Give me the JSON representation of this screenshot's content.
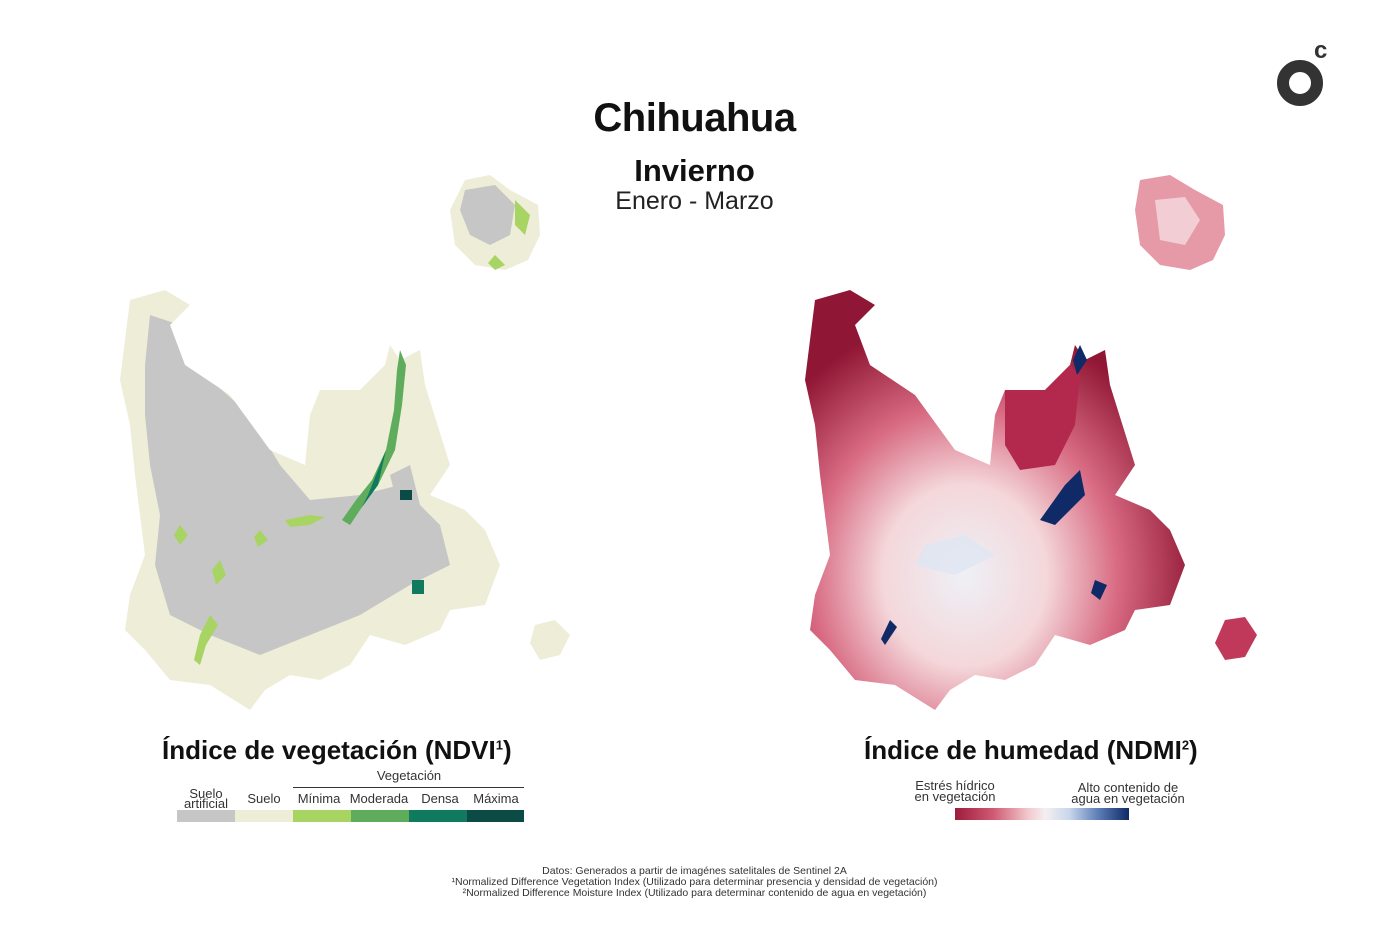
{
  "header": {
    "title": "Chihuahua",
    "season": "Invierno",
    "months": "Enero - Marzo"
  },
  "colors": {
    "suelo_artificial": "#c6c6c6",
    "suelo": "#eeedd8",
    "minima": "#a8d464",
    "moderada": "#5eac5c",
    "densa": "#0f7a5e",
    "maxima": "#0b4a45",
    "ndmi_low": "#9e1b3d",
    "ndmi_mid": "#f4eff1",
    "ndmi_high": "#0f2a66"
  },
  "ndvi_legend": {
    "title": "Índice de vegetación (NDVI",
    "sup": "1",
    "close": ")",
    "group_label": "Vegetación",
    "classes": [
      {
        "label_line1": "Suelo",
        "label_line2": "artificial"
      },
      {
        "label_line1": "Suelo",
        "label_line2": ""
      },
      {
        "label_line1": "Mínima",
        "label_line2": ""
      },
      {
        "label_line1": "Moderada",
        "label_line2": ""
      },
      {
        "label_line1": "Densa",
        "label_line2": ""
      },
      {
        "label_line1": "Máxima",
        "label_line2": ""
      }
    ]
  },
  "ndmi_legend": {
    "title": "Índice de humedad (NDMI",
    "sup": "2",
    "close": ")",
    "low_label_1": "Estrés hídrico",
    "low_label_2": "en vegetación",
    "high_label_1": "Alto contenido de",
    "high_label_2": "agua en vegetación"
  },
  "footer": {
    "line1": "Datos: Generados a partir de imagénes satelitales de Sentinel 2A",
    "line2": "¹Normalized Difference Vegetation Index (Utilizado para determinar presencia y densidad de vegetación)",
    "line3": "²Normalized Difference Moisture Index (Utilizado para determinar contenido de agua en vegetación)"
  },
  "logo": {
    "icon": "oc-logo-icon",
    "mark": "c"
  }
}
